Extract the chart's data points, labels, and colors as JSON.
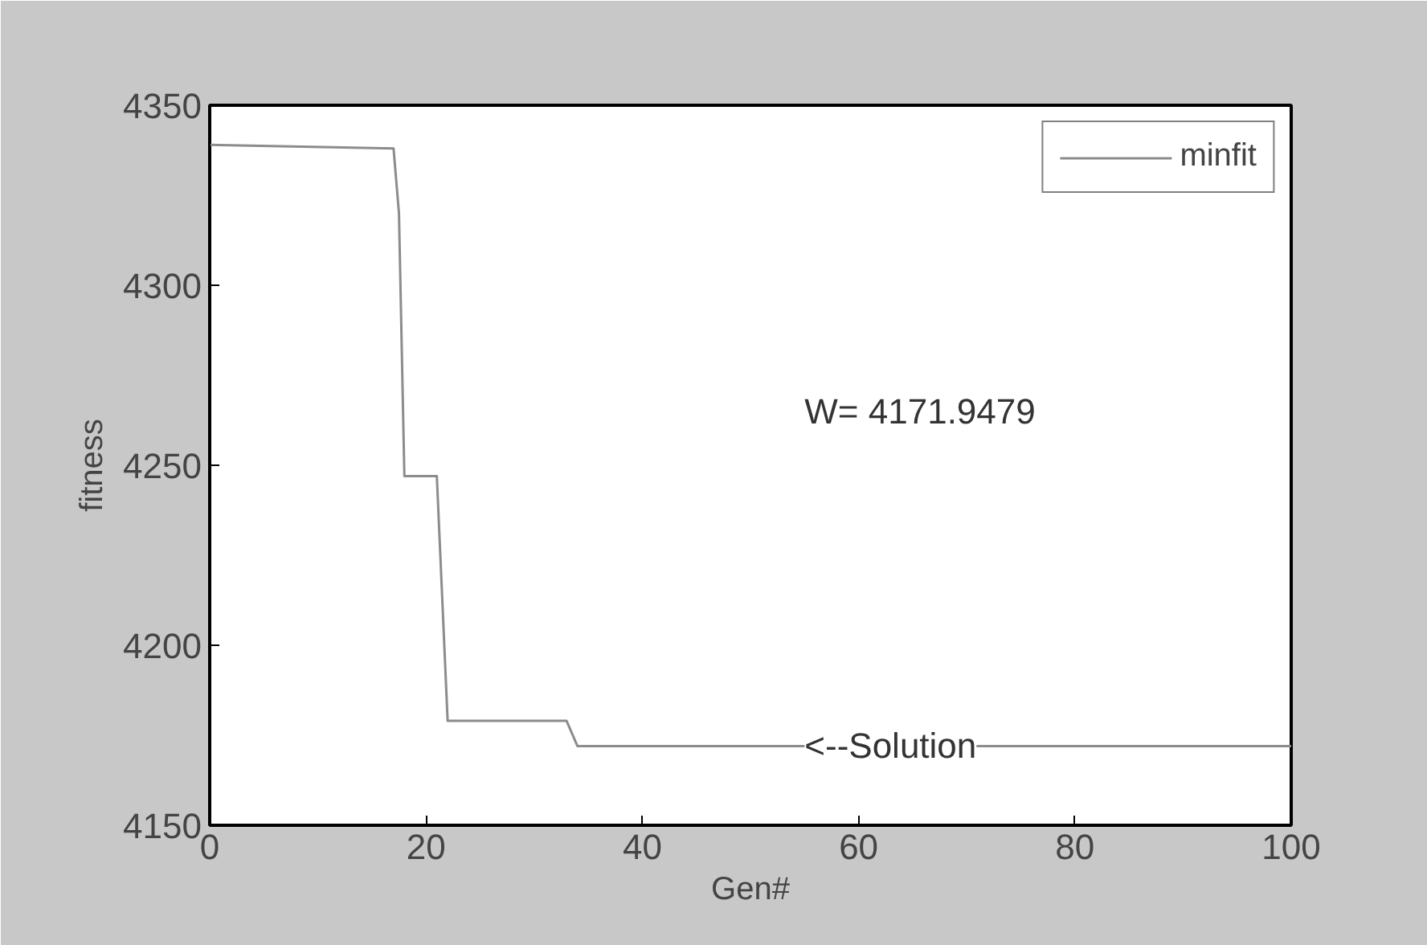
{
  "chart_data": {
    "type": "line",
    "xlabel": "Gen#",
    "ylabel": "fitness",
    "xlim": [
      0,
      100
    ],
    "ylim": [
      4150,
      4350
    ],
    "xticks": [
      0,
      20,
      40,
      60,
      80,
      100
    ],
    "yticks": [
      4150,
      4200,
      4250,
      4300,
      4350
    ],
    "grid": false,
    "legend": "top right",
    "line_style": "solid",
    "series": [
      {
        "name": "minfit",
        "color": "#8c8c8c",
        "x": [
          0,
          17,
          17.5,
          18,
          21,
          22,
          33,
          34,
          100
        ],
        "values": [
          4339,
          4338,
          4320,
          4247,
          4247,
          4179,
          4179,
          4172,
          4172
        ]
      }
    ],
    "annotations": [
      "W=  4171.9479",
      {
        "text": "<--Solution",
        "x": 55,
        "y": 4172
      }
    ]
  }
}
